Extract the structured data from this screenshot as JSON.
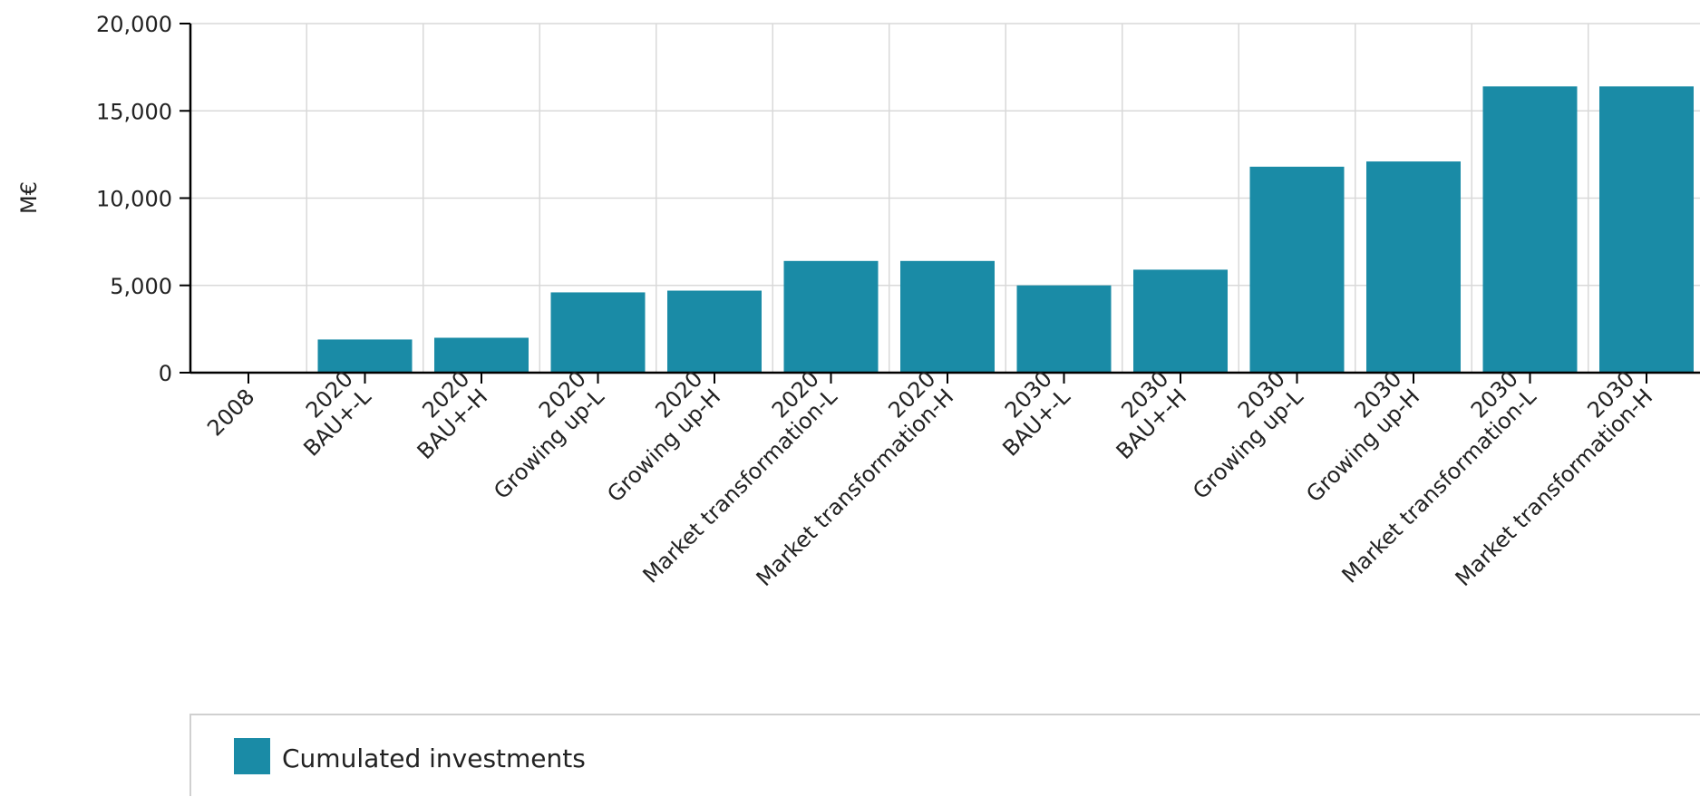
{
  "chart_data": {
    "type": "bar",
    "ylabel": "M€",
    "xlabel": "",
    "ylim": [
      0,
      20000
    ],
    "yticks": [
      0,
      5000,
      10000,
      15000,
      20000
    ],
    "ytick_labels": [
      "0",
      "5,000",
      "10,000",
      "15,000",
      "20,000"
    ],
    "grid": true,
    "categories": [
      [
        "2008"
      ],
      [
        "2020",
        "BAU+-L"
      ],
      [
        "2020",
        "BAU+-H"
      ],
      [
        "2020",
        "Growing up-L"
      ],
      [
        "2020",
        "Growing up-H"
      ],
      [
        "2020",
        "Market transformation-L"
      ],
      [
        "2020",
        "Market transformation-H"
      ],
      [
        "2030",
        "BAU+-L"
      ],
      [
        "2030",
        "BAU+-H"
      ],
      [
        "2030",
        "Growing up-L"
      ],
      [
        "2030",
        "Growing up-H"
      ],
      [
        "2030",
        "Market transformation-L"
      ],
      [
        "2030",
        "Market transformation-H"
      ]
    ],
    "series": [
      {
        "name": "Cumulated investments",
        "color": "#1a8ba6",
        "values": [
          0,
          1900,
          2000,
          4600,
          4700,
          6400,
          6400,
          5000,
          5900,
          11800,
          12100,
          16400,
          16400
        ]
      }
    ],
    "legend_position": "bottom"
  }
}
